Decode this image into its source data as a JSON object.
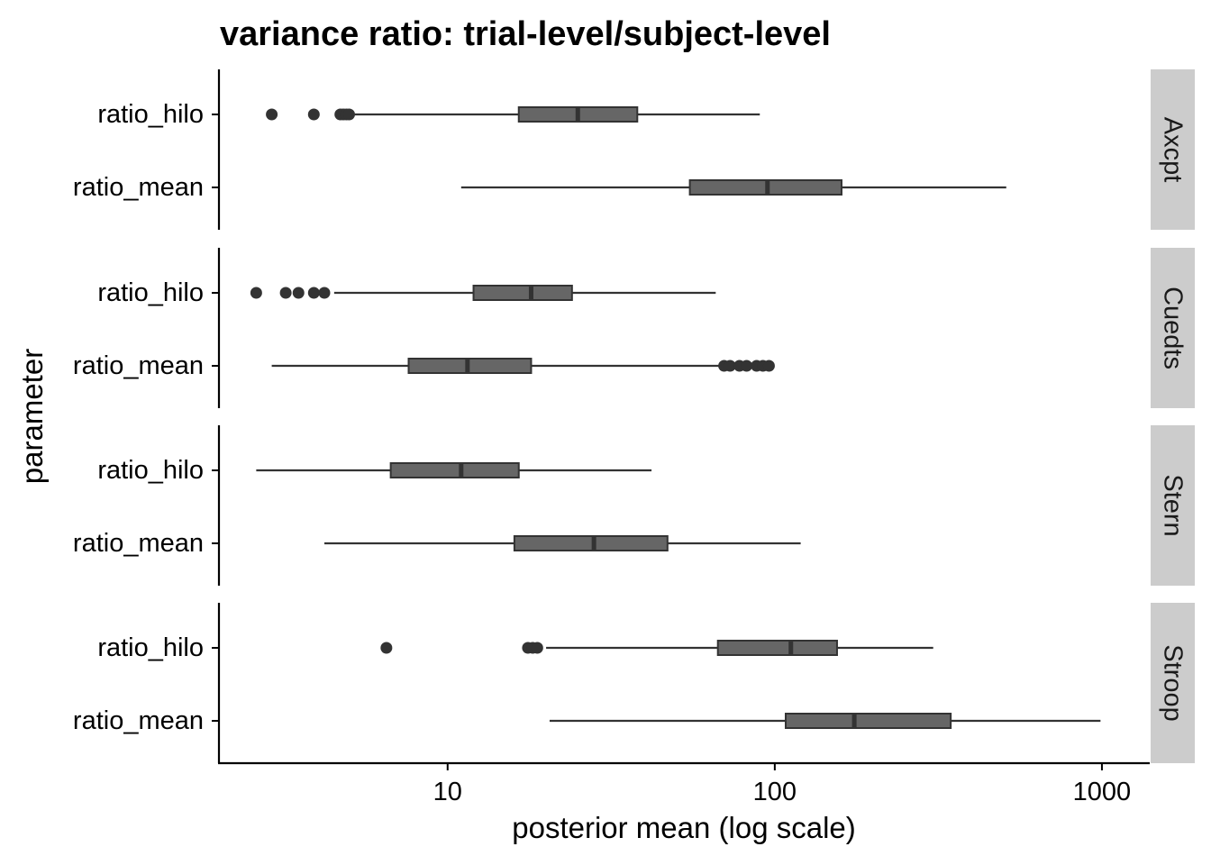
{
  "chart_data": {
    "type": "boxplot",
    "title": "variance ratio: trial-level/subject-level",
    "xlabel": "posterior mean (log scale)",
    "ylabel": "parameter",
    "x_scale": "log10",
    "xlim": [
      2,
      1400
    ],
    "x_ticks": [
      {
        "value": 10,
        "label": "10"
      },
      {
        "value": 100,
        "label": "100"
      },
      {
        "value": 1000,
        "label": "1000"
      }
    ],
    "categories": [
      "ratio_hilo",
      "ratio_mean"
    ],
    "colors": {
      "box_fill": "#666666",
      "box_stroke": "#333333",
      "strip_bg": "#cccccc",
      "axis": "#000000"
    },
    "panels": [
      {
        "label": "Axcpt",
        "boxes": [
          {
            "parameter": "ratio_hilo",
            "whisker_low": 5.2,
            "q1": 16.5,
            "median": 25,
            "q3": 38,
            "whisker_high": 90,
            "outliers": [
              2.9,
              3.9,
              4.7,
              4.8,
              4.9,
              5.0
            ]
          },
          {
            "parameter": "ratio_mean",
            "whisker_low": 11,
            "q1": 55,
            "median": 95,
            "q3": 160,
            "whisker_high": 510,
            "outliers": []
          }
        ]
      },
      {
        "label": "Cuedts",
        "boxes": [
          {
            "parameter": "ratio_hilo",
            "whisker_low": 4.5,
            "q1": 12,
            "median": 18,
            "q3": 24,
            "whisker_high": 66,
            "outliers": [
              2.6,
              3.2,
              3.5,
              3.9,
              4.2
            ]
          },
          {
            "parameter": "ratio_mean",
            "whisker_low": 2.9,
            "q1": 7.6,
            "median": 11.5,
            "q3": 18,
            "whisker_high": 69,
            "outliers": [
              70,
              73,
              78,
              82,
              88,
              92,
              96
            ]
          }
        ]
      },
      {
        "label": "Stern",
        "boxes": [
          {
            "parameter": "ratio_hilo",
            "whisker_low": 2.6,
            "q1": 6.7,
            "median": 11,
            "q3": 16.5,
            "whisker_high": 42,
            "outliers": []
          },
          {
            "parameter": "ratio_mean",
            "whisker_low": 4.2,
            "q1": 16,
            "median": 28,
            "q3": 47,
            "whisker_high": 120,
            "outliers": []
          }
        ]
      },
      {
        "label": "Stroop",
        "boxes": [
          {
            "parameter": "ratio_hilo",
            "whisker_low": 20,
            "q1": 67,
            "median": 112,
            "q3": 155,
            "whisker_high": 305,
            "outliers": [
              6.5,
              17.6,
              18.2,
              18.8
            ]
          },
          {
            "parameter": "ratio_mean",
            "whisker_low": 20.5,
            "q1": 108,
            "median": 175,
            "q3": 345,
            "whisker_high": 990,
            "outliers": []
          }
        ]
      }
    ]
  }
}
